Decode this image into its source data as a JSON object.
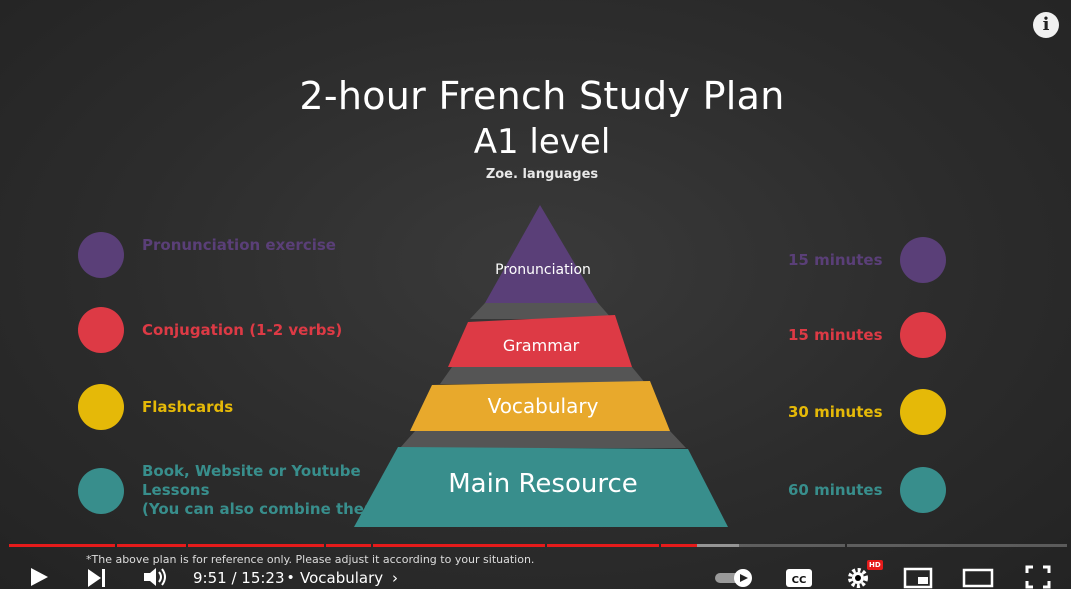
{
  "slide": {
    "title": "2-hour French Study Plan",
    "level": "A1 level",
    "author": "Zoe. languages",
    "activities": [
      {
        "label": "Pronunciation exercise",
        "color": "#5a3f78",
        "time": "15 minutes"
      },
      {
        "label": "Conjugation (1-2 verbs)",
        "color": "#dd3a45",
        "time": "15 minutes"
      },
      {
        "label": "Flashcards",
        "color": "#e5b908",
        "time": "30 minutes"
      },
      {
        "label": "Book, Website or Youtube\nLessons\n(You can also combine them)",
        "color": "#388e8c",
        "time": "60 minutes"
      }
    ],
    "pyramid": {
      "tiers": [
        {
          "label": "Pronunciation",
          "color": "#5a3f78"
        },
        {
          "label": "Grammar",
          "color": "#dd3a45"
        },
        {
          "label": "Vocabulary",
          "color": "#e8a92c"
        },
        {
          "label": "Main Resource",
          "color": "#388e8c"
        }
      ]
    },
    "note": "*The above plan is for reference only. Please adjust it according to your situation."
  },
  "player": {
    "current_time": "9:51",
    "duration": "15:23",
    "time_display": "9:51 / 15:23",
    "separator": "•",
    "chapter": "Vocabulary",
    "chapter_arrow": "›",
    "hd_badge": "HD",
    "progress_fraction": 0.64,
    "icons": [
      "play-icon",
      "next-icon",
      "volume-icon",
      "autoplay-toggle-icon",
      "captions-icon",
      "settings-icon",
      "miniplayer-icon",
      "theater-icon",
      "fullscreen-icon",
      "info-icon"
    ],
    "accent": "#e51b1b"
  }
}
